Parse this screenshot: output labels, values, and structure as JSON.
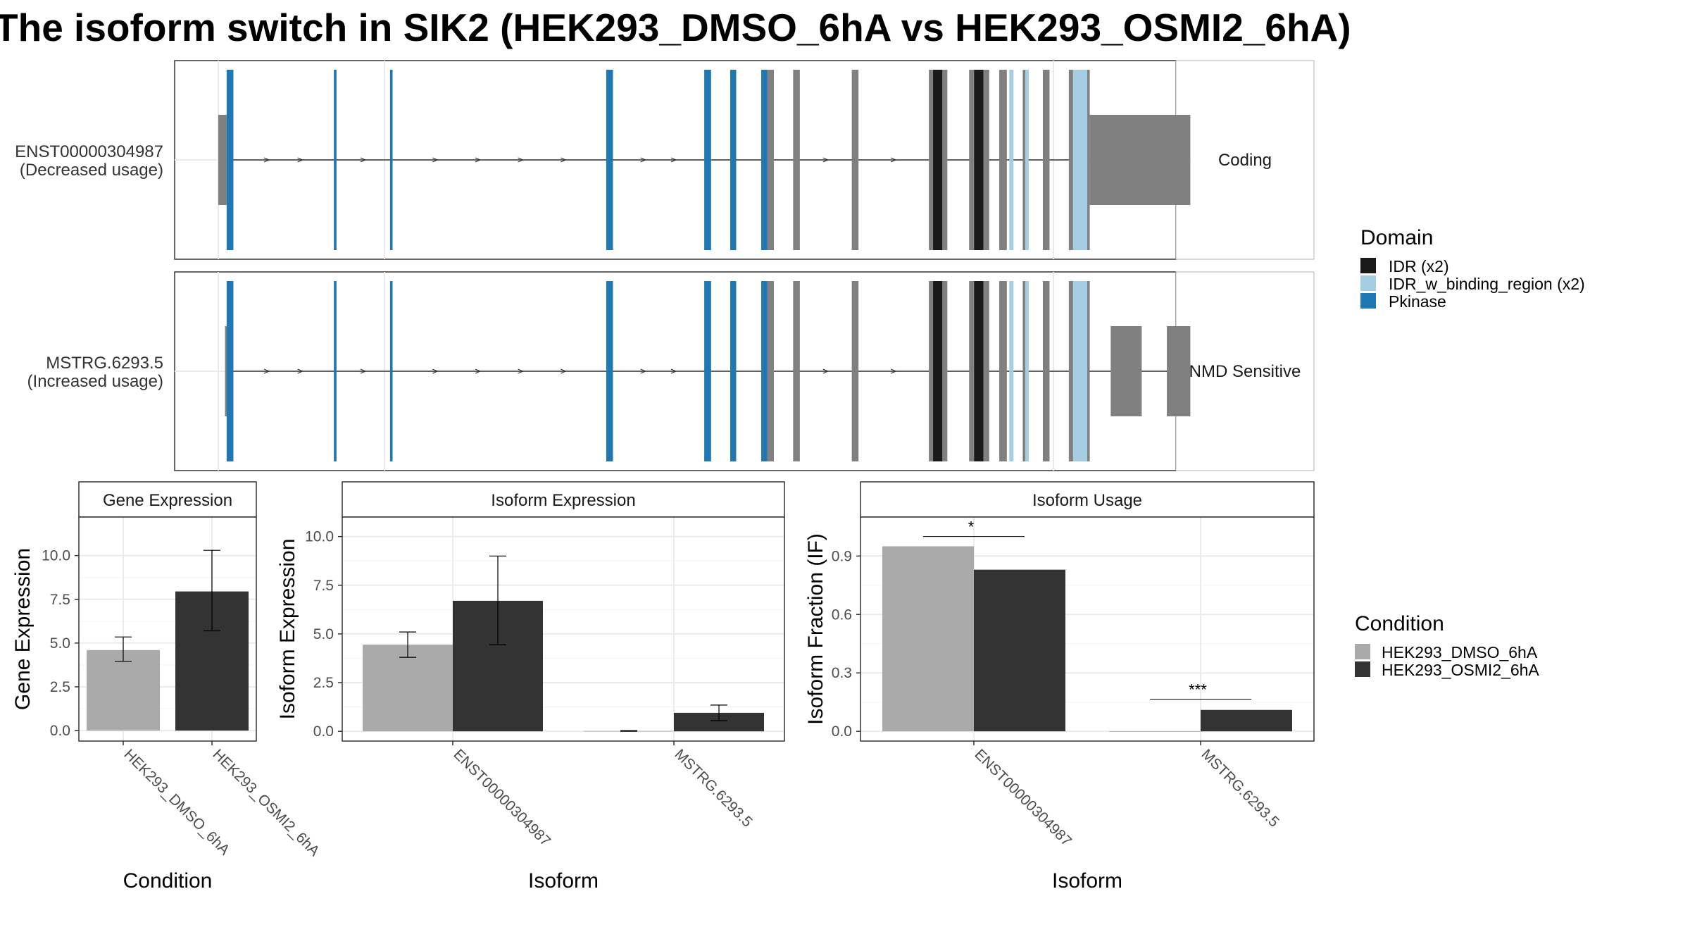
{
  "title": "The isoform switch in SIK2 (HEK293_DMSO_6hA vs HEK293_OSMI2_6hA)",
  "colors": {
    "IDR": "#1a1a1a",
    "IDR_w_binding_region": "#a6cee3",
    "Pkinase": "#1f78b4",
    "exon": "#808080",
    "dmso": "#aaaaaa",
    "osmi2": "#333333"
  },
  "isoform_structure": {
    "isoforms": [
      {
        "id": "ENST00000304987",
        "usage": "(Decreased usage)",
        "category": "Coding",
        "exons": [
          [
            0,
            10,
            "utr"
          ],
          [
            10,
            18,
            "cds"
          ],
          [
            138,
            141,
            "cds"
          ],
          [
            205,
            208,
            "cds"
          ],
          [
            463,
            471,
            "cds"
          ],
          [
            580,
            588,
            "cds"
          ],
          [
            611,
            618,
            "cds"
          ],
          [
            648,
            663,
            "cds"
          ],
          [
            686,
            694,
            "cds"
          ],
          [
            756,
            764,
            "cds"
          ],
          [
            848,
            870,
            "cds"
          ],
          [
            896,
            920,
            "cds"
          ],
          [
            932,
            941,
            "cds"
          ],
          [
            960,
            967,
            "cds"
          ],
          [
            984,
            992,
            "cds"
          ],
          [
            1015,
            1040,
            "cds"
          ],
          [
            1040,
            1160,
            "utr"
          ]
        ],
        "domains": [
          [
            10,
            18,
            "Pkinase"
          ],
          [
            138,
            141,
            "Pkinase"
          ],
          [
            205,
            208,
            "Pkinase"
          ],
          [
            463,
            471,
            "Pkinase"
          ],
          [
            580,
            588,
            "Pkinase"
          ],
          [
            611,
            618,
            "Pkinase"
          ],
          [
            648,
            655,
            "Pkinase"
          ],
          [
            853,
            864,
            "IDR"
          ],
          [
            902,
            913,
            "IDR"
          ],
          [
            944,
            949,
            "IDR_w_binding_region"
          ],
          [
            963,
            967,
            "IDR_w_binding_region"
          ],
          [
            1020,
            1037,
            "IDR_w_binding_region"
          ]
        ]
      },
      {
        "id": "MSTRG.6293.5",
        "usage": "(Increased usage)",
        "category": "NMD Sensitive",
        "exons": [
          [
            8,
            12,
            "utr"
          ],
          [
            10,
            18,
            "cds"
          ],
          [
            138,
            141,
            "cds"
          ],
          [
            205,
            208,
            "cds"
          ],
          [
            463,
            471,
            "cds"
          ],
          [
            580,
            588,
            "cds"
          ],
          [
            611,
            618,
            "cds"
          ],
          [
            648,
            663,
            "cds"
          ],
          [
            686,
            694,
            "cds"
          ],
          [
            756,
            764,
            "cds"
          ],
          [
            848,
            870,
            "cds"
          ],
          [
            896,
            920,
            "cds"
          ],
          [
            932,
            941,
            "cds"
          ],
          [
            960,
            967,
            "cds"
          ],
          [
            984,
            992,
            "cds"
          ],
          [
            1015,
            1040,
            "cds"
          ],
          [
            1065,
            1102,
            "utr"
          ],
          [
            1132,
            1160,
            "utr"
          ]
        ],
        "domains": [
          [
            10,
            18,
            "Pkinase"
          ],
          [
            138,
            141,
            "Pkinase"
          ],
          [
            205,
            208,
            "Pkinase"
          ],
          [
            463,
            471,
            "Pkinase"
          ],
          [
            580,
            588,
            "Pkinase"
          ],
          [
            611,
            618,
            "Pkinase"
          ],
          [
            648,
            655,
            "Pkinase"
          ],
          [
            853,
            864,
            "IDR"
          ],
          [
            902,
            913,
            "IDR"
          ],
          [
            944,
            949,
            "IDR_w_binding_region"
          ],
          [
            963,
            967,
            "IDR_w_binding_region"
          ],
          [
            1020,
            1037,
            "IDR_w_binding_region"
          ]
        ]
      }
    ]
  },
  "domain_legend": {
    "title": "Domain",
    "items": [
      {
        "label": "IDR (x2)",
        "key": "IDR"
      },
      {
        "label": "IDR_w_binding_region (x2)",
        "key": "IDR_w_binding_region"
      },
      {
        "label": "Pkinase",
        "key": "Pkinase"
      }
    ]
  },
  "condition_legend": {
    "title": "Condition",
    "items": [
      {
        "label": "HEK293_DMSO_6hA",
        "key": "dmso"
      },
      {
        "label": "HEK293_OSMI2_6hA",
        "key": "osmi2"
      }
    ]
  },
  "chart_data": [
    {
      "type": "bar",
      "title": "Gene Expression",
      "xlabel": "Condition",
      "ylabel": "Gene Expression",
      "ylim": [
        -0.6,
        12.2
      ],
      "yticks": [
        "0.0",
        "2.5",
        "5.0",
        "7.5",
        "10.0"
      ],
      "categories": [
        "HEK293_DMSO_6hA",
        "HEK293_OSMI2_6hA"
      ],
      "series": [
        {
          "name": "HEK293_DMSO_6hA",
          "key": "dmso",
          "values": [
            4.6,
            null
          ],
          "err_low": [
            3.95,
            null
          ],
          "err_high": [
            5.35,
            null
          ]
        },
        {
          "name": "HEK293_OSMI2_6hA",
          "key": "osmi2",
          "values": [
            null,
            7.95
          ],
          "err_low": [
            null,
            5.7
          ],
          "err_high": [
            null,
            10.3
          ]
        }
      ],
      "grid": true
    },
    {
      "type": "bar",
      "title": "Isoform Expression",
      "xlabel": "Isoform",
      "ylabel": "Isoform Expression",
      "ylim": [
        -0.5,
        11.0
      ],
      "yticks": [
        "0.0",
        "2.5",
        "5.0",
        "7.5",
        "10.0"
      ],
      "categories": [
        "ENST00000304987",
        "MSTRG.6293.5"
      ],
      "series": [
        {
          "name": "HEK293_DMSO_6hA",
          "key": "dmso",
          "values": [
            4.45,
            0.02
          ],
          "err_low": [
            3.8,
            0.0
          ],
          "err_high": [
            5.1,
            0.04
          ]
        },
        {
          "name": "HEK293_OSMI2_6hA",
          "key": "osmi2",
          "values": [
            6.7,
            0.95
          ],
          "err_low": [
            4.45,
            0.55
          ],
          "err_high": [
            9.0,
            1.35
          ]
        }
      ],
      "grid": true
    },
    {
      "type": "bar",
      "title": "Isoform Usage",
      "xlabel": "Isoform",
      "ylabel": "Isoform Fraction (IF)",
      "ylim": [
        -0.05,
        1.1
      ],
      "yticks": [
        "0.0",
        "0.3",
        "0.6",
        "0.9"
      ],
      "categories": [
        "ENST00000304987",
        "MSTRG.6293.5"
      ],
      "series": [
        {
          "name": "HEK293_DMSO_6hA",
          "key": "dmso",
          "values": [
            0.95,
            0.0
          ]
        },
        {
          "name": "HEK293_OSMI2_6hA",
          "key": "osmi2",
          "values": [
            0.83,
            0.11
          ]
        }
      ],
      "significance": [
        {
          "category": "ENST00000304987",
          "label": "*",
          "y": 1.0
        },
        {
          "category": "MSTRG.6293.5",
          "label": "***",
          "y": 0.165
        }
      ],
      "grid": true
    }
  ]
}
